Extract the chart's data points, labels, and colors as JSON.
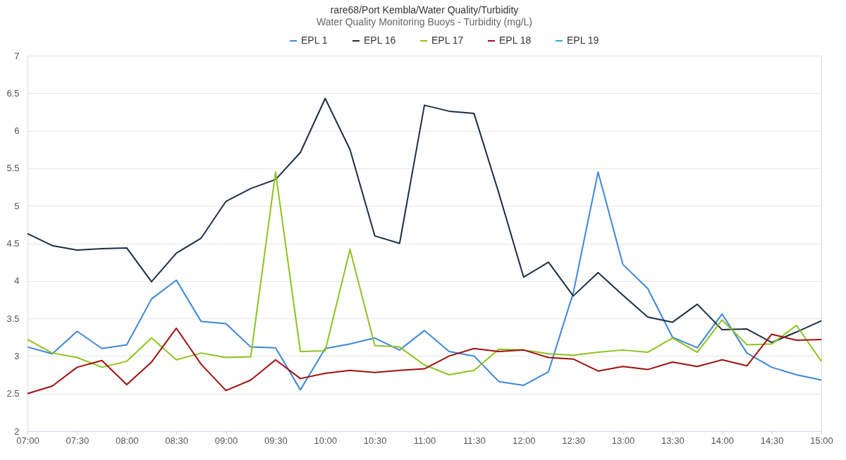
{
  "chart_data": {
    "type": "line",
    "title": "rare68/Port Kembla/Water Quality/Turbidity",
    "subtitle": "Water Quality Monitoring Buoys - Turbidity (mg/L)",
    "x": [
      7,
      7.25,
      7.5,
      7.75,
      8,
      8.25,
      8.5,
      8.75,
      9,
      9.25,
      9.5,
      9.75,
      10,
      10.25,
      10.5,
      10.75,
      11,
      11.25,
      11.5,
      11.75,
      12,
      12.25,
      12.5,
      12.75,
      13,
      13.25,
      13.5,
      13.75,
      14,
      14.25,
      14.5,
      14.75,
      15
    ],
    "series": [
      {
        "name": "EPL 1",
        "color": "#3d87d9",
        "values": [
          3.12,
          3.03,
          3.33,
          3.1,
          3.15,
          3.76,
          4.01,
          3.46,
          3.43,
          3.12,
          3.11,
          2.55,
          3.1,
          3.16,
          3.24,
          3.08,
          3.34,
          3.06,
          3.0,
          2.66,
          2.61,
          2.79,
          3.84,
          5.45,
          4.22,
          3.9,
          3.25,
          3.11,
          3.56,
          3.04,
          2.85,
          2.75,
          2.68
        ]
      },
      {
        "name": "EPL 16",
        "color": "#1b2f45",
        "values": [
          4.63,
          4.47,
          4.41,
          4.43,
          4.44,
          3.99,
          4.37,
          4.57,
          5.06,
          5.23,
          5.35,
          5.71,
          6.43,
          5.75,
          4.6,
          4.5,
          6.34,
          6.26,
          6.23,
          5.17,
          4.05,
          4.25,
          3.8,
          4.11,
          3.81,
          3.52,
          3.45,
          3.69,
          3.35,
          3.36,
          3.18,
          3.32,
          3.47
        ]
      },
      {
        "name": "EPL 17",
        "color": "#8dc21f",
        "values": [
          3.22,
          3.04,
          2.98,
          2.85,
          2.93,
          3.24,
          2.95,
          3.04,
          2.98,
          2.99,
          5.45,
          3.06,
          3.07,
          4.42,
          3.14,
          3.12,
          2.88,
          2.75,
          2.81,
          3.09,
          3.08,
          3.03,
          3.01,
          3.05,
          3.08,
          3.05,
          3.24,
          3.05,
          3.48,
          3.15,
          3.16,
          3.41,
          2.93
        ]
      },
      {
        "name": "EPL 18",
        "color": "#a01010",
        "values": [
          2.5,
          2.6,
          2.85,
          2.94,
          2.62,
          2.92,
          3.37,
          2.89,
          2.54,
          2.68,
          2.95,
          2.7,
          2.77,
          2.81,
          2.78,
          2.81,
          2.83,
          3.0,
          3.1,
          3.06,
          3.08,
          2.98,
          2.96,
          2.8,
          2.86,
          2.82,
          2.92,
          2.86,
          2.95,
          2.87,
          3.29,
          3.21,
          3.22
        ]
      },
      {
        "name": "EPL 19",
        "color": "#29a8e0",
        "values": [
          null,
          null,
          null,
          null,
          null,
          null,
          null,
          null,
          null,
          null,
          null,
          null,
          null,
          null,
          null,
          null,
          null,
          null,
          null,
          null,
          null,
          null,
          null,
          null,
          null,
          null,
          null,
          null,
          null,
          null,
          null,
          null,
          null
        ]
      }
    ],
    "xlim": [
      7,
      15
    ],
    "xticks": [
      {
        "value": 7,
        "label": "07:00"
      },
      {
        "value": 7.5,
        "label": "07:30"
      },
      {
        "value": 8,
        "label": "08:00"
      },
      {
        "value": 8.5,
        "label": "08:30"
      },
      {
        "value": 9,
        "label": "09:00"
      },
      {
        "value": 9.5,
        "label": "09:30"
      },
      {
        "value": 10,
        "label": "10:00"
      },
      {
        "value": 10.5,
        "label": "10:30"
      },
      {
        "value": 11,
        "label": "11:00"
      },
      {
        "value": 11.5,
        "label": "11:30"
      },
      {
        "value": 12,
        "label": "12:00"
      },
      {
        "value": 12.5,
        "label": "12:30"
      },
      {
        "value": 13,
        "label": "13:00"
      },
      {
        "value": 13.5,
        "label": "13:30"
      },
      {
        "value": 14,
        "label": "14:00"
      },
      {
        "value": 14.5,
        "label": "14:30"
      },
      {
        "value": 15,
        "label": "15:00"
      }
    ],
    "ylim": [
      2,
      7
    ],
    "yticks": [
      2,
      2.5,
      3,
      3.5,
      4,
      4.5,
      5,
      5.5,
      6,
      6.5,
      7
    ],
    "grid": "y",
    "legend": "top",
    "marker": "none",
    "line_style": "solid"
  }
}
